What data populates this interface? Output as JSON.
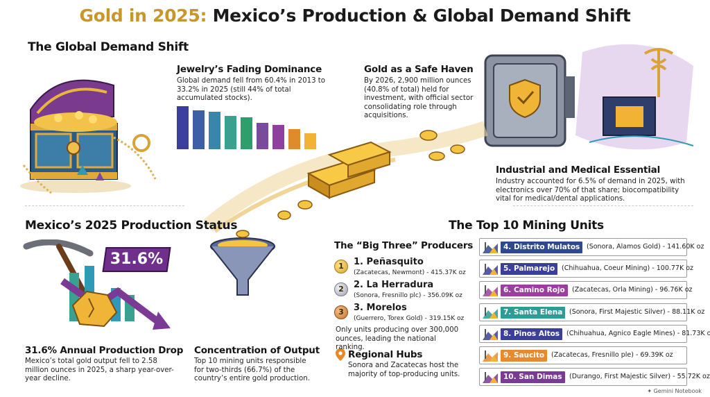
{
  "title": {
    "accent": "Gold in 2025:",
    "rest": " Mexico’s Production & Global Demand Shift"
  },
  "global_demand": {
    "heading": "The Global Demand Shift",
    "jewelry": {
      "title": "Jewelry’s Fading Dominance",
      "text": "Global demand fell from 60.4% in 2013 to 33.2% in 2025 (still 44% of total accumulated stocks).",
      "bar_colors": [
        "#3c3f9d",
        "#3c5fa6",
        "#3b86a8",
        "#3aa08f",
        "#2c9f6c",
        "#7a4a9e",
        "#8f3f9e",
        "#e08b2b",
        "#f2b233"
      ],
      "bar_levels": [
        0.89,
        0.8,
        0.77,
        0.68,
        0.66,
        0.54,
        0.5,
        0.42,
        0.33
      ]
    },
    "safe_haven": {
      "title": "Gold as a Safe Haven",
      "text": "By 2026, 2,900 million ounces (40.8% of total) held for investment, with official sector consolidating role through acquisitions."
    },
    "industrial": {
      "title": "Industrial and Medical Essential",
      "text": "Industry accounted for 6.5% of demand in 2025, with electronics over 70% of that share; biocompatibility vital for medical/dental applications."
    }
  },
  "mexico": {
    "heading": "Mexico’s 2025 Production Status",
    "badge": "31.6%",
    "drop_title": "31.6% Annual Production Drop",
    "drop_text": "Mexico’s total gold output fell to 2.58 million ounces in 2025, a sharp year-over-year decline.",
    "concentration_title": "Concentration of Output",
    "concentration_text": "Top 10 mining units responsible for two-thirds (66.7%) of the country’s entire gold production."
  },
  "top10": {
    "heading": "The Top 10 Mining Units",
    "big_three_title": "The “Big Three” Producers",
    "big_three": [
      {
        "rank": "1",
        "name": "1. Peñasquito",
        "detail": "(Zacatecas, Newmont) - 415.37K oz"
      },
      {
        "rank": "2",
        "name": "2. La Herradura",
        "detail": "(Sonora, Fresnillo plc) - 356.09K oz"
      },
      {
        "rank": "3",
        "name": "3. Morelos",
        "detail": "(Guerrero, Torex Gold) - 319.15K oz"
      }
    ],
    "big_three_note": "Only units producing over 300,000 ounces, leading the national ranking.",
    "hubs_title": "Regional Hubs",
    "hubs_text": "Sonora and Zacatecas host the majority of top-producing units.",
    "units": [
      {
        "name": "4. Distrito Mulatos",
        "info": "(Sonora, Alamos Gold)  - 141.60K oz",
        "color": "#2f4a8a"
      },
      {
        "name": "5. Palmarejo",
        "info": "(Chihuahua, Coeur Mining)  - 100.77K oz",
        "color": "#3b3f9a"
      },
      {
        "name": "6. Camino Rojo",
        "info": "(Zacatecas, Orla Mining)  - 96.76K oz",
        "color": "#9a3fa0"
      },
      {
        "name": "7. Santa Elena",
        "info": "(Sonora, First Majestic Silver)  - 88.11K oz",
        "color": "#2f9a96"
      },
      {
        "name": "8. Pinos Altos",
        "info": "(Chihuahua, Agnico Eagle Mines) - 81.73K oz",
        "color": "#3b3f9a"
      },
      {
        "name": "9. Saucito",
        "info": "(Zacatecas, Fresnillo ple)  - 69.39K oz",
        "color": "#e68a2e"
      },
      {
        "name": "10. San Dimas",
        "info": "(Durango, First Majestic Silver) - 55.72K oz",
        "color": "#7a3a96"
      }
    ]
  },
  "footer": "Gemini Notebook"
}
